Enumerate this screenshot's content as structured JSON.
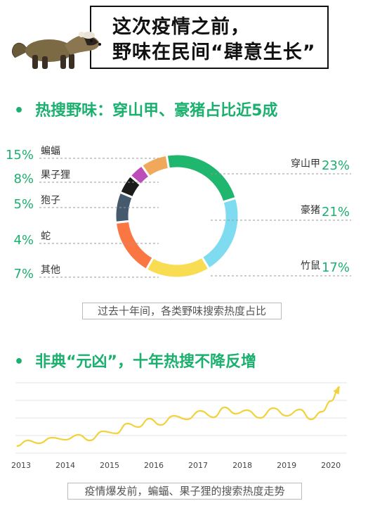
{
  "header": {
    "line1": "这次疫情之前，",
    "line2": "野味在民间“肆意生长”"
  },
  "section1": {
    "bullet": "•",
    "title": "热搜野味：穿山甲、豪猪占比近5成",
    "caption": "过去十年间，各类野味搜索热度占比"
  },
  "section2": {
    "bullet": "•",
    "title": "非典“元凶”，十年热搜不降反增",
    "caption": "疫情爆发前，蝙蝠、果子狸的搜索热度走势"
  },
  "colors": {
    "accent": "#1bb06e",
    "line": "#f2d23a"
  },
  "chart_data": [
    {
      "type": "pie",
      "donut": true,
      "slices": [
        {
          "label": "穿山甲",
          "value": 23,
          "display": "23%",
          "color": "#1fb66e",
          "side": "right"
        },
        {
          "label": "豪猪",
          "value": 21,
          "display": "21%",
          "color": "#7fdcf0",
          "side": "right"
        },
        {
          "label": "竹鼠",
          "value": 17,
          "display": "17%",
          "color": "#f8dc52",
          "side": "right"
        },
        {
          "label": "蝙蝠",
          "value": 15,
          "display": "15%",
          "color": "#fa7642",
          "side": "left"
        },
        {
          "label": "果子狸",
          "value": 8,
          "display": "8%",
          "color": "#465a6e",
          "side": "left"
        },
        {
          "label": "狍子",
          "value": 5,
          "display": "5%",
          "color": "#1b1b1b",
          "side": "left"
        },
        {
          "label": "蛇",
          "value": 4,
          "display": "4%",
          "color": "#bd4db8",
          "side": "left"
        },
        {
          "label": "其他",
          "value": 7,
          "display": "7%",
          "color": "#f0a85a",
          "side": "left"
        }
      ]
    },
    {
      "type": "line",
      "x": [
        "2013",
        "2014",
        "2015",
        "2016",
        "2017",
        "2018",
        "2019",
        "2020"
      ],
      "xlim": [
        2013,
        2020.3
      ],
      "ylim": [
        0,
        100
      ],
      "grid": true,
      "arrow_end": true,
      "series": [
        {
          "points": [
            [
              2012.9,
              6
            ],
            [
              2013.15,
              14
            ],
            [
              2013.4,
              10
            ],
            [
              2013.7,
              18
            ],
            [
              2014.0,
              15
            ],
            [
              2014.3,
              22
            ],
            [
              2014.55,
              14
            ],
            [
              2014.85,
              27
            ],
            [
              2015.15,
              24
            ],
            [
              2015.4,
              38
            ],
            [
              2015.65,
              33
            ],
            [
              2015.9,
              45
            ],
            [
              2016.15,
              36
            ],
            [
              2016.45,
              49
            ],
            [
              2016.75,
              44
            ],
            [
              2017.05,
              56
            ],
            [
              2017.35,
              47
            ],
            [
              2017.6,
              61
            ],
            [
              2017.85,
              52
            ],
            [
              2018.1,
              57
            ],
            [
              2018.4,
              46
            ],
            [
              2018.7,
              60
            ],
            [
              2019.0,
              49
            ],
            [
              2019.3,
              58
            ],
            [
              2019.55,
              44
            ],
            [
              2019.8,
              55
            ],
            [
              2020.0,
              70
            ],
            [
              2020.2,
              90
            ]
          ]
        }
      ]
    }
  ]
}
